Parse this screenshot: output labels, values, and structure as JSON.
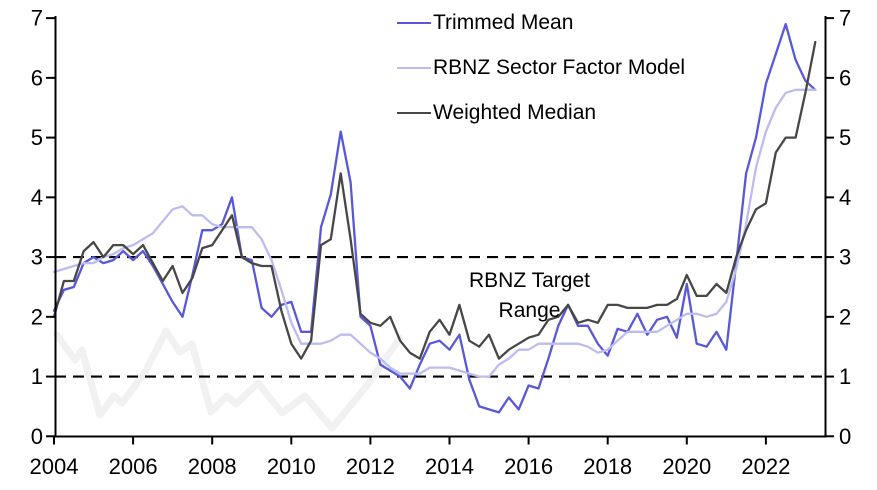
{
  "chart_data": {
    "type": "line",
    "title": "",
    "x_unit": "quarterly",
    "x_start": 2004.0,
    "x_step": 0.25,
    "x_axis": {
      "tick_years": [
        2004,
        2006,
        2008,
        2010,
        2012,
        2014,
        2016,
        2018,
        2020,
        2022
      ],
      "range": [
        2004.0,
        2023.5
      ]
    },
    "y_axis": {
      "ticks": [
        0,
        1,
        2,
        3,
        4,
        5,
        6,
        7
      ],
      "range": [
        0,
        7
      ],
      "left": true,
      "right": true
    },
    "grid": false,
    "legend_position": "top-center",
    "annotation": {
      "line1": "RBNZ Target",
      "line2": "Range"
    },
    "target_band": {
      "levels": [
        1,
        3
      ],
      "line_color": "#000000",
      "style": "dashed"
    },
    "series": [
      {
        "name": "Trimmed Mean",
        "color": "#5858d8",
        "values": [
          2.1,
          2.45,
          2.5,
          2.9,
          3.0,
          2.9,
          2.95,
          3.1,
          2.95,
          3.1,
          2.85,
          2.55,
          2.25,
          2.0,
          2.7,
          3.45,
          3.45,
          3.55,
          4.0,
          3.0,
          2.95,
          2.15,
          2.0,
          2.2,
          2.25,
          1.75,
          1.75,
          3.5,
          4.05,
          5.1,
          4.25,
          2.0,
          1.85,
          1.2,
          1.1,
          1.0,
          0.8,
          1.2,
          1.55,
          1.6,
          1.45,
          1.7,
          0.95,
          0.5,
          0.45,
          0.4,
          0.65,
          0.45,
          0.85,
          0.8,
          1.3,
          1.85,
          2.2,
          1.85,
          1.85,
          1.55,
          1.35,
          1.8,
          1.75,
          2.05,
          1.7,
          1.95,
          2.0,
          1.65,
          2.55,
          1.55,
          1.5,
          1.75,
          1.45,
          2.9,
          4.4,
          5.0,
          5.9,
          6.4,
          6.9,
          6.3,
          5.95,
          5.8
        ]
      },
      {
        "name": "RBNZ Sector Factor Model",
        "color": "#bcbcf0",
        "values": [
          2.75,
          2.8,
          2.85,
          2.9,
          2.9,
          3.0,
          3.05,
          3.15,
          3.2,
          3.3,
          3.4,
          3.6,
          3.8,
          3.85,
          3.7,
          3.7,
          3.55,
          3.5,
          3.5,
          3.5,
          3.5,
          3.3,
          2.95,
          2.45,
          1.9,
          1.55,
          1.55,
          1.55,
          1.6,
          1.7,
          1.7,
          1.55,
          1.4,
          1.3,
          1.15,
          1.05,
          1.05,
          1.05,
          1.15,
          1.15,
          1.15,
          1.1,
          1.05,
          1.0,
          1.0,
          1.2,
          1.3,
          1.45,
          1.45,
          1.55,
          1.55,
          1.55,
          1.55,
          1.55,
          1.5,
          1.4,
          1.45,
          1.6,
          1.75,
          1.75,
          1.75,
          1.75,
          1.85,
          1.95,
          2.05,
          2.05,
          2.0,
          2.05,
          2.25,
          2.8,
          3.55,
          4.5,
          5.1,
          5.5,
          5.75,
          5.8,
          5.8,
          5.8
        ]
      },
      {
        "name": "Weighted Median",
        "color": "#474747",
        "values": [
          2.0,
          2.6,
          2.6,
          3.1,
          3.25,
          3.0,
          3.2,
          3.2,
          3.05,
          3.2,
          2.9,
          2.6,
          2.85,
          2.4,
          2.65,
          3.15,
          3.2,
          3.45,
          3.7,
          3.0,
          2.9,
          2.85,
          2.85,
          2.1,
          1.55,
          1.3,
          1.6,
          3.2,
          3.3,
          4.4,
          3.3,
          2.05,
          1.9,
          1.85,
          2.0,
          1.6,
          1.4,
          1.3,
          1.75,
          1.95,
          1.7,
          2.2,
          1.6,
          1.5,
          1.7,
          1.3,
          1.45,
          1.55,
          1.65,
          1.7,
          1.95,
          2.0,
          2.2,
          1.9,
          1.95,
          1.9,
          2.2,
          2.2,
          2.15,
          2.15,
          2.15,
          2.2,
          2.2,
          2.3,
          2.7,
          2.35,
          2.35,
          2.55,
          2.4,
          3.0,
          3.45,
          3.8,
          3.9,
          4.75,
          5.0,
          5.0,
          5.75,
          6.6
        ]
      }
    ],
    "colors": {
      "axis": "#000000",
      "background": "#ffffff",
      "watermark": "#f1f1f1"
    }
  }
}
